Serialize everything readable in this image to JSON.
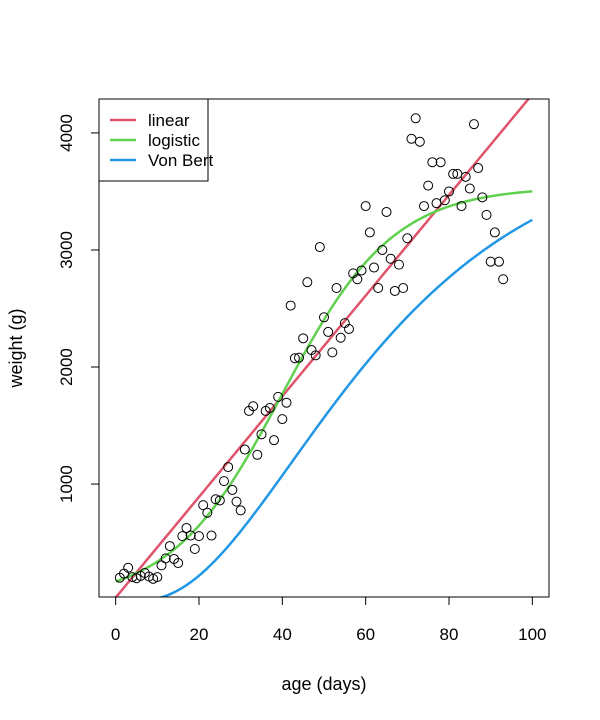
{
  "chart_data": {
    "type": "scatter",
    "title": "",
    "xlabel": "age (days)",
    "ylabel": "weight (g)",
    "xlim": [
      -4,
      104
    ],
    "ylim": [
      35,
      4290
    ],
    "x_ticks": [
      0,
      20,
      40,
      60,
      80,
      100
    ],
    "y_ticks": [
      1000,
      2000,
      3000,
      4000
    ],
    "grid": false,
    "legend": {
      "position": "top-left",
      "entries": [
        {
          "label": "linear",
          "color": "#DF536B"
        },
        {
          "label": "logistic",
          "color": "#61D04F"
        },
        {
          "label": "Von Bert",
          "color": "#2297E6"
        }
      ]
    },
    "points": {
      "x": [
        1,
        2,
        3,
        4,
        5,
        6,
        7,
        8,
        9,
        10,
        11,
        12,
        13,
        14,
        15,
        16,
        17,
        18,
        19,
        20,
        21,
        22,
        23,
        24,
        25,
        26,
        27,
        28,
        29,
        30,
        31,
        32,
        33,
        34,
        35,
        36,
        37,
        38,
        39,
        40,
        41,
        42,
        43,
        44,
        45,
        46,
        47,
        48,
        49,
        50,
        51,
        52,
        53,
        54,
        55,
        56,
        57,
        58,
        59,
        60,
        61,
        62,
        63,
        64,
        65,
        66,
        67,
        68,
        69,
        70,
        71,
        72,
        73,
        74,
        75,
        76,
        77,
        78,
        79,
        80,
        81,
        82,
        83,
        84,
        85,
        86,
        87,
        88,
        89,
        90,
        91,
        92,
        93
      ],
      "y": [
        200,
        235,
        285,
        205,
        195,
        215,
        240,
        210,
        190,
        205,
        305,
        365,
        470,
        360,
        325,
        555,
        625,
        560,
        445,
        555,
        820,
        755,
        560,
        870,
        860,
        1025,
        1145,
        950,
        850,
        775,
        1295,
        1625,
        1665,
        1250,
        1425,
        1625,
        1650,
        1375,
        1745,
        1555,
        1695,
        2525,
        2075,
        2080,
        2245,
        2725,
        2145,
        2100,
        3025,
        2425,
        2300,
        2125,
        2675,
        2250,
        2375,
        2325,
        2800,
        2750,
        2825,
        3375,
        3150,
        2850,
        2675,
        3000,
        3325,
        2925,
        2650,
        2875,
        2675,
        3100,
        3950,
        4125,
        3925,
        3375,
        3550,
        3750,
        3400,
        3750,
        3425,
        3500,
        3650,
        3650,
        3375,
        3625,
        3525,
        4075,
        3700,
        3450,
        3300,
        2900,
        3150,
        2900,
        2750
      ]
    },
    "series": [
      {
        "name": "linear",
        "color": "#DF536B",
        "model": "linear",
        "params": {
          "intercept": 30,
          "slope": 43
        }
      },
      {
        "name": "logistic",
        "color": "#61D04F",
        "model": "logistic",
        "params": {
          "asymptote": 3540,
          "midpoint": 40,
          "rate": 0.075
        }
      },
      {
        "name": "Von Bert",
        "color": "#2297E6",
        "model": "von_bertalanffy",
        "params": {
          "asymptote": 4000,
          "k": 0.028,
          "t0": 3,
          "power": 3
        }
      }
    ]
  }
}
